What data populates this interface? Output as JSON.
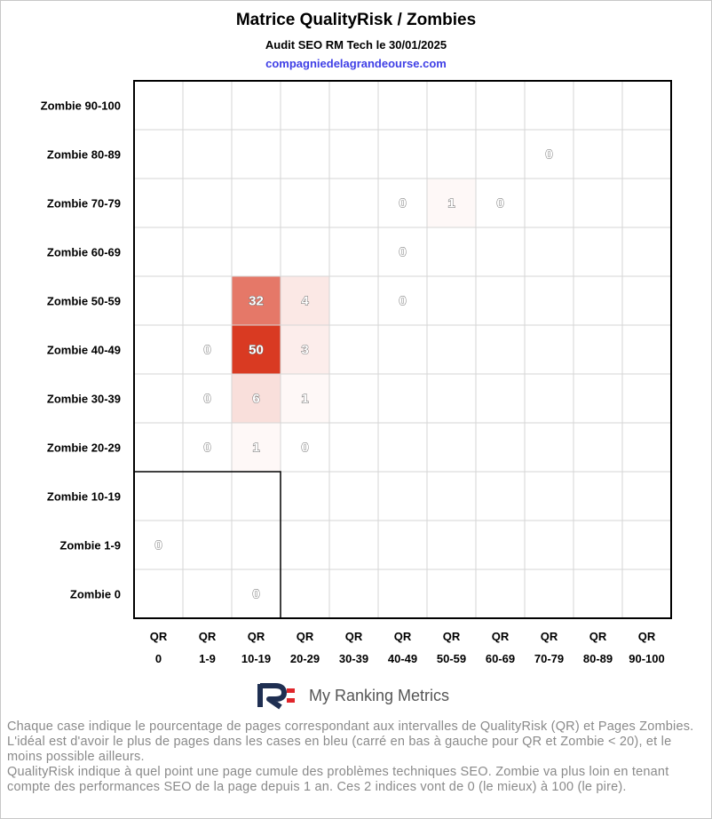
{
  "title": "Matrice QualityRisk / Zombies",
  "subtitle": "Audit SEO RM Tech le 30/01/2025",
  "domain": "compagniedelagrandeourse.com",
  "chart_data": {
    "type": "heatmap",
    "x_prefix": "QR",
    "x_categories": [
      "0",
      "1-9",
      "10-19",
      "20-29",
      "30-39",
      "40-49",
      "50-59",
      "60-69",
      "70-79",
      "80-89",
      "90-100"
    ],
    "y_categories": [
      "Zombie 90-100",
      "Zombie 80-89",
      "Zombie 70-79",
      "Zombie 60-69",
      "Zombie 50-59",
      "Zombie 40-49",
      "Zombie 30-39",
      "Zombie 20-29",
      "Zombie 10-19",
      "Zombie 1-9",
      "Zombie 0"
    ],
    "cells": [
      {
        "x": "70-79",
        "y": "Zombie 80-89",
        "value": 0
      },
      {
        "x": "40-49",
        "y": "Zombie 70-79",
        "value": 0
      },
      {
        "x": "50-59",
        "y": "Zombie 70-79",
        "value": 1
      },
      {
        "x": "60-69",
        "y": "Zombie 70-79",
        "value": 0
      },
      {
        "x": "40-49",
        "y": "Zombie 60-69",
        "value": 0
      },
      {
        "x": "10-19",
        "y": "Zombie 50-59",
        "value": 32
      },
      {
        "x": "20-29",
        "y": "Zombie 50-59",
        "value": 4
      },
      {
        "x": "40-49",
        "y": "Zombie 50-59",
        "value": 0
      },
      {
        "x": "1-9",
        "y": "Zombie 40-49",
        "value": 0
      },
      {
        "x": "10-19",
        "y": "Zombie 40-49",
        "value": 50
      },
      {
        "x": "20-29",
        "y": "Zombie 40-49",
        "value": 3
      },
      {
        "x": "1-9",
        "y": "Zombie 30-39",
        "value": 0
      },
      {
        "x": "10-19",
        "y": "Zombie 30-39",
        "value": 6
      },
      {
        "x": "20-29",
        "y": "Zombie 30-39",
        "value": 1
      },
      {
        "x": "1-9",
        "y": "Zombie 20-29",
        "value": 0
      },
      {
        "x": "10-19",
        "y": "Zombie 20-29",
        "value": 1
      },
      {
        "x": "20-29",
        "y": "Zombie 20-29",
        "value": 0
      },
      {
        "x": "0",
        "y": "Zombie 1-9",
        "value": 0
      },
      {
        "x": "10-19",
        "y": "Zombie 0",
        "value": 0
      }
    ],
    "color_scale": {
      "low": "#ffffff",
      "high": "#d93a22",
      "max_value": 50
    },
    "highlight_zone": {
      "x_from": "0",
      "x_to": "10-19",
      "y_from": "Zombie 10-19",
      "y_to": "Zombie 0"
    },
    "grid": true
  },
  "brand": {
    "name": "My Ranking Metrics",
    "colors": {
      "navy": "#1f2f52",
      "red": "#e0262b"
    }
  },
  "footer": {
    "line1": "Chaque case indique le pourcentage de pages correspondant aux intervalles de QualityRisk (QR) et Pages Zombies. L'idéal est d'avoir le plus de pages dans les cases en bleu (carré en bas à gauche pour QR et Zombie < 20), et le moins possible ailleurs.",
    "line2": "QualityRisk indique à quel point une page cumule des problèmes techniques SEO. Zombie va plus loin en tenant compte des performances SEO de la page depuis 1 an. Ces 2 indices vont de 0 (le mieux) à 100 (le pire)."
  }
}
